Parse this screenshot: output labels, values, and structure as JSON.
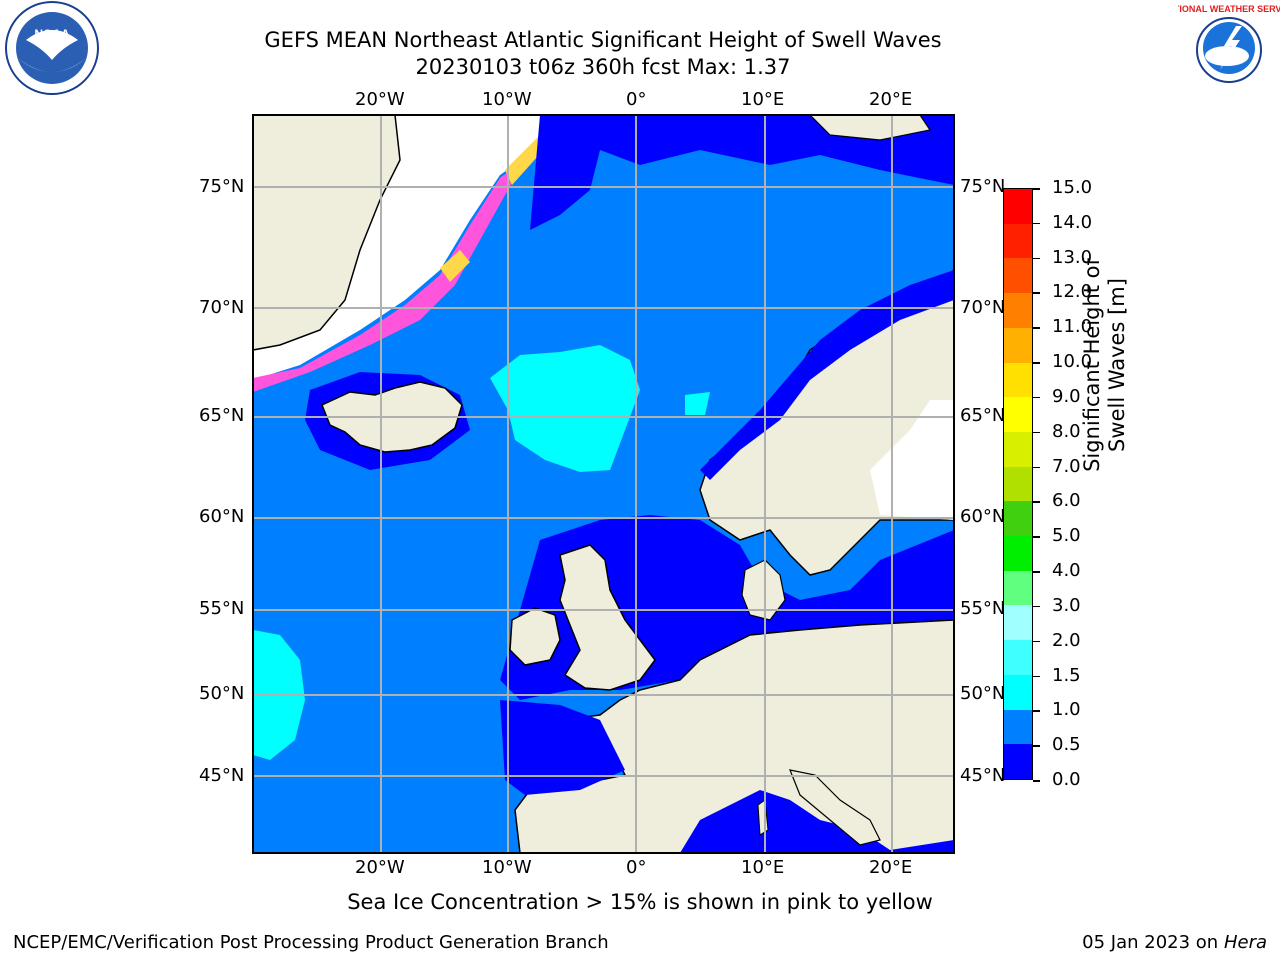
{
  "header": {
    "title_line1": "GEFS MEAN Northeast Atlantic Significant Height of Swell Waves",
    "title_line2": "20230103 t06z 360h fcst   Max: 1.37"
  },
  "logos": {
    "left": "noaa-logo",
    "right": "national-weather-service-logo",
    "noaa_text": "NOAA",
    "nws_text": "NATIONAL WEATHER SERVICE"
  },
  "map": {
    "lon_labels": [
      "20°W",
      "10°W",
      "0°",
      "10°E",
      "20°E"
    ],
    "lat_labels": [
      "75°N",
      "70°N",
      "65°N",
      "60°N",
      "55°N",
      "50°N",
      "45°N"
    ],
    "colors": {
      "land": "#efeddc",
      "ice_free_white": "#ffffff",
      "swell_0": "#0000ff",
      "swell_05": "#0080ff",
      "swell_10": "#00ffff",
      "ice_pink": "#ff55dd",
      "ice_yellow": "#ffd84a"
    }
  },
  "colorbar": {
    "label": "Significant Height of Swell Waves [m]",
    "ticks": [
      "0.0",
      "0.5",
      "1.0",
      "1.5",
      "2.0",
      "3.0",
      "4.0",
      "5.0",
      "6.0",
      "7.0",
      "8.0",
      "9.0",
      "10.0",
      "11.0",
      "12.0",
      "13.0",
      "14.0",
      "15.0"
    ],
    "colors": [
      "#0000ff",
      "#0080ff",
      "#00ffff",
      "#40ffff",
      "#a0ffff",
      "#60ff80",
      "#00ee00",
      "#40d010",
      "#b0e000",
      "#d8f000",
      "#ffff00",
      "#ffe000",
      "#ffb000",
      "#ff8000",
      "#ff5000",
      "#ff2000",
      "#ff0000"
    ]
  },
  "footer": {
    "note": "Sea Ice Concentration > 15% is shown in pink to yellow",
    "left": "NCEP/EMC/Verification Post Processing Product Generation Branch",
    "right_date": "05 Jan 2023 on ",
    "right_machine": "Hera"
  }
}
